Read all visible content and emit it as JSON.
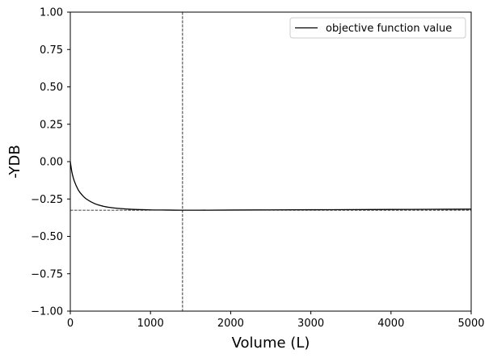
{
  "chart_data": {
    "type": "line",
    "title": "",
    "xlabel": "Volume (L)",
    "ylabel": "-YDB",
    "xlim": [
      0,
      5000
    ],
    "ylim": [
      -1.0,
      1.0
    ],
    "xticks": [
      0,
      1000,
      2000,
      3000,
      4000,
      5000
    ],
    "xtick_labels": [
      "0",
      "1000",
      "2000",
      "3000",
      "4000",
      "5000"
    ],
    "yticks": [
      -1.0,
      -0.75,
      -0.5,
      -0.25,
      0.0,
      0.25,
      0.5,
      0.75,
      1.0
    ],
    "ytick_labels": [
      "−1.00",
      "−0.75",
      "−0.50",
      "−0.25",
      "0.00",
      "0.25",
      "0.50",
      "0.75",
      "1.00"
    ],
    "grid": false,
    "legend_position": "upper-right",
    "series": [
      {
        "name": "objective function value",
        "color": "#000000",
        "x": [
          0,
          20,
          50,
          100,
          150,
          200,
          300,
          400,
          500,
          600,
          800,
          1000,
          1200,
          1400,
          1600,
          2000,
          2500,
          3000,
          3500,
          4000,
          4500,
          5000
        ],
        "y": [
          0.0,
          -0.07,
          -0.13,
          -0.19,
          -0.225,
          -0.25,
          -0.28,
          -0.297,
          -0.307,
          -0.313,
          -0.32,
          -0.323,
          -0.324,
          -0.325,
          -0.325,
          -0.324,
          -0.323,
          -0.322,
          -0.321,
          -0.32,
          -0.319,
          -0.318
        ]
      }
    ],
    "reference_lines": [
      {
        "orientation": "vertical",
        "value": 1400,
        "style": "dashed",
        "color": "#000000"
      },
      {
        "orientation": "horizontal",
        "value": -0.325,
        "style": "dashed",
        "color": "#000000"
      }
    ]
  }
}
